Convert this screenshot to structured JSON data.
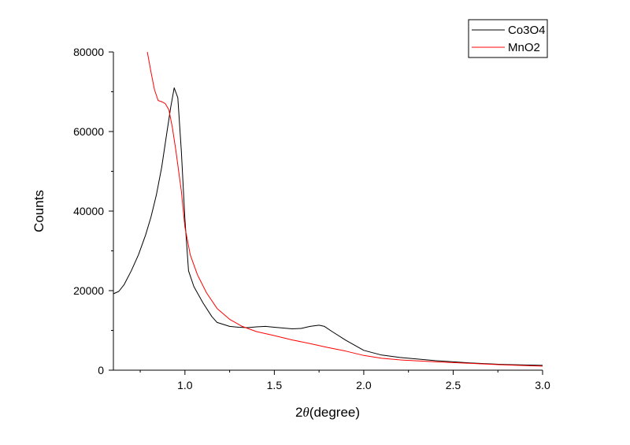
{
  "chart_data": {
    "type": "line",
    "xlabel_prefix": "2",
    "xlabel_symbol": "θ",
    "xlabel_suffix": "(degree)",
    "ylabel": "Counts",
    "xlim": [
      0.6,
      3.0
    ],
    "ylim": [
      0,
      80000
    ],
    "x_ticks": [
      1.0,
      1.5,
      2.0,
      2.5,
      3.0
    ],
    "x_tick_labels": [
      "1.0",
      "1.5",
      "2.0",
      "2.5",
      "3.0"
    ],
    "y_ticks": [
      0,
      20000,
      40000,
      60000,
      80000
    ],
    "y_tick_labels": [
      "0",
      "20000",
      "40000",
      "60000",
      "80000"
    ],
    "grid": false,
    "legend_position": "top-right",
    "series": [
      {
        "name": "Co3O4",
        "color": "#000000",
        "points": [
          [
            0.6,
            19200
          ],
          [
            0.63,
            19800
          ],
          [
            0.66,
            21500
          ],
          [
            0.7,
            25000
          ],
          [
            0.74,
            29000
          ],
          [
            0.78,
            34000
          ],
          [
            0.81,
            38500
          ],
          [
            0.84,
            44000
          ],
          [
            0.87,
            51000
          ],
          [
            0.9,
            60000
          ],
          [
            0.92,
            66000
          ],
          [
            0.94,
            71000
          ],
          [
            0.96,
            68500
          ],
          [
            0.98,
            55000
          ],
          [
            1.0,
            38000
          ],
          [
            1.02,
            25000
          ],
          [
            1.05,
            21000
          ],
          [
            1.1,
            17000
          ],
          [
            1.15,
            13500
          ],
          [
            1.18,
            12000
          ],
          [
            1.25,
            11000
          ],
          [
            1.3,
            10800
          ],
          [
            1.35,
            10700
          ],
          [
            1.4,
            10900
          ],
          [
            1.45,
            11000
          ],
          [
            1.5,
            10800
          ],
          [
            1.55,
            10600
          ],
          [
            1.6,
            10400
          ],
          [
            1.65,
            10500
          ],
          [
            1.7,
            11000
          ],
          [
            1.75,
            11300
          ],
          [
            1.78,
            11000
          ],
          [
            1.82,
            9800
          ],
          [
            1.9,
            7500
          ],
          [
            2.0,
            5000
          ],
          [
            2.1,
            3800
          ],
          [
            2.2,
            3200
          ],
          [
            2.4,
            2400
          ],
          [
            2.6,
            1800
          ],
          [
            2.8,
            1400
          ],
          [
            3.0,
            1200
          ]
        ]
      },
      {
        "name": "MnO2",
        "color": "#ff0000",
        "points": [
          [
            0.79,
            80000
          ],
          [
            0.81,
            75000
          ],
          [
            0.83,
            70500
          ],
          [
            0.85,
            67800
          ],
          [
            0.87,
            67500
          ],
          [
            0.89,
            67000
          ],
          [
            0.91,
            65500
          ],
          [
            0.93,
            61000
          ],
          [
            0.95,
            55000
          ],
          [
            0.98,
            45000
          ],
          [
            1.0,
            36000
          ],
          [
            1.03,
            29000
          ],
          [
            1.07,
            24000
          ],
          [
            1.12,
            19500
          ],
          [
            1.18,
            15500
          ],
          [
            1.25,
            12800
          ],
          [
            1.32,
            11000
          ],
          [
            1.4,
            9700
          ],
          [
            1.5,
            8700
          ],
          [
            1.6,
            7600
          ],
          [
            1.7,
            6700
          ],
          [
            1.8,
            5700
          ],
          [
            1.9,
            4800
          ],
          [
            2.0,
            3700
          ],
          [
            2.1,
            3000
          ],
          [
            2.2,
            2600
          ],
          [
            2.4,
            2100
          ],
          [
            2.6,
            1700
          ],
          [
            2.8,
            1300
          ],
          [
            3.0,
            1000
          ]
        ]
      }
    ]
  }
}
